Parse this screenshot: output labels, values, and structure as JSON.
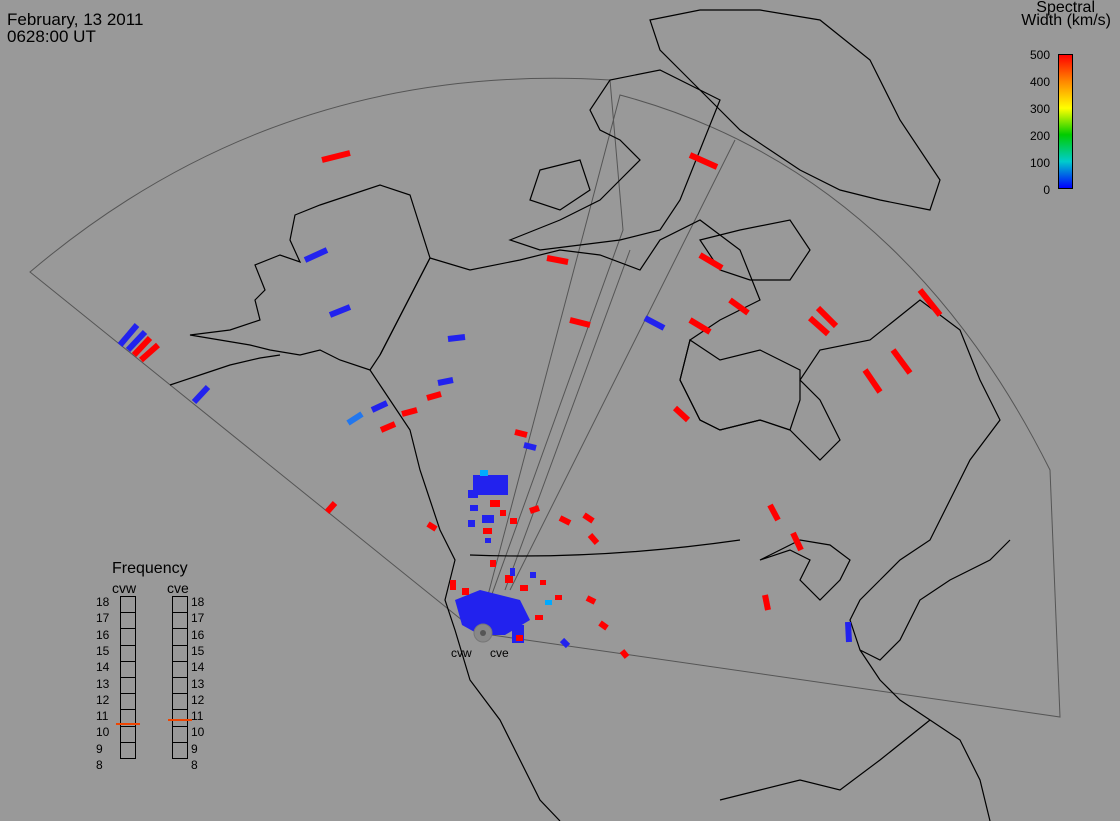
{
  "header": {
    "date": "February, 13 2011",
    "time": "0628:00 UT"
  },
  "colorbar": {
    "title_line1": "Spectral",
    "title_line2": "Width (km/s)",
    "ticks": [
      "500",
      "400",
      "300",
      "200",
      "100",
      "0"
    ],
    "colors": [
      "#ff0000",
      "#ff8800",
      "#ffff00",
      "#00cc00",
      "#00cccc",
      "#0000ff"
    ]
  },
  "frequency": {
    "title": "Frequency",
    "cvw_label": "cvw",
    "cve_label": "cve",
    "levels": [
      "18",
      "17",
      "16",
      "15",
      "14",
      "13",
      "12",
      "11",
      "10",
      "9",
      "8"
    ],
    "cvw_value": 10.6,
    "cve_value": 10.8,
    "marker_color": "#ee4400"
  },
  "sites": {
    "west": "cvw",
    "east": "cve"
  },
  "map": {
    "background": "#999999",
    "coast_color": "#000000",
    "fov_color": "#555555",
    "echo_low": "#2222ee",
    "echo_high": "#ff0000",
    "echo_mid": "#00aaff"
  }
}
